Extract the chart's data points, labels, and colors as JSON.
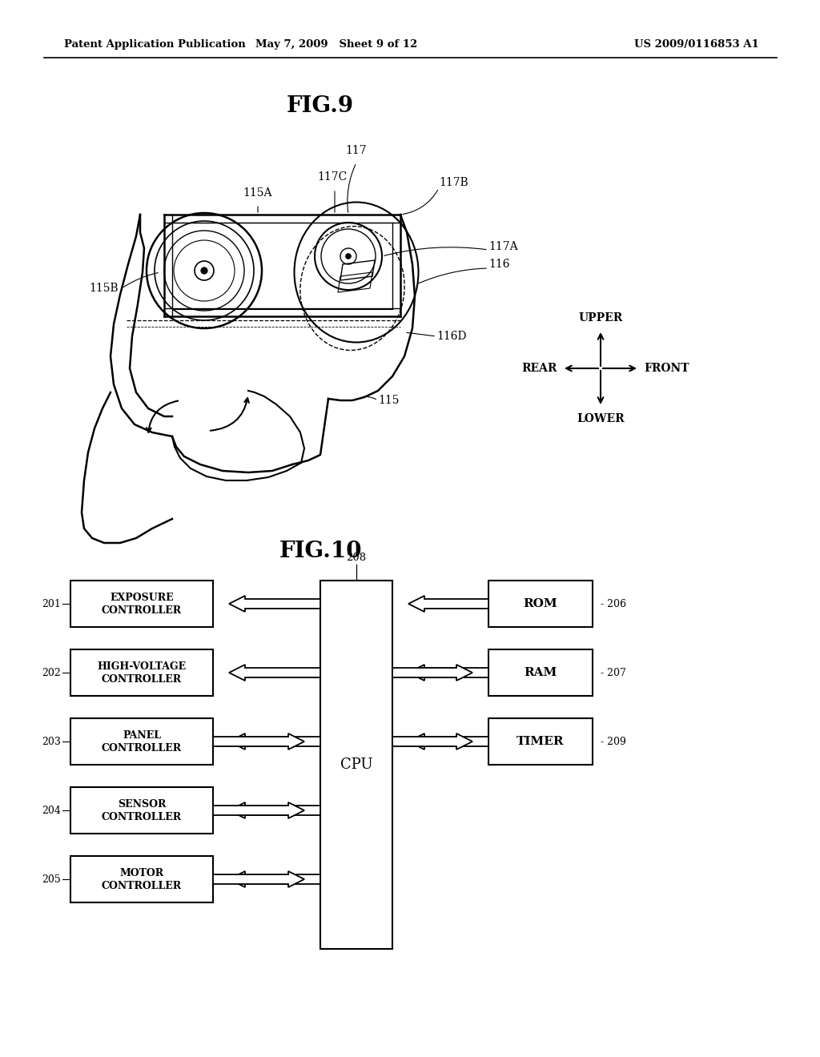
{
  "background_color": "#ffffff",
  "header_left": "Patent Application Publication",
  "header_center": "May 7, 2009   Sheet 9 of 12",
  "header_right": "US 2009/0116853 A1",
  "fig9_title": "FIG.9",
  "fig10_title": "FIG.10",
  "fig10_cpu_label": "CPU",
  "fig10_cpu_number": "208",
  "left_blocks": [
    {
      "label": "EXPOSURE\nCONTROLLER",
      "number": "201",
      "arrow": "left_only"
    },
    {
      "label": "HIGH-VOLTAGE\nCONTROLLER",
      "number": "202",
      "arrow": "left_only"
    },
    {
      "label": "PANEL\nCONTROLLER",
      "number": "203",
      "arrow": "both"
    },
    {
      "label": "SENSOR\nCONTROLLER",
      "number": "204",
      "arrow": "both"
    },
    {
      "label": "MOTOR\nCONTROLLER",
      "number": "205",
      "arrow": "both"
    }
  ],
  "right_blocks": [
    {
      "label": "ROM",
      "number": "206",
      "arrow": "left_only"
    },
    {
      "label": "RAM",
      "number": "207",
      "arrow": "both"
    },
    {
      "label": "TIMER",
      "number": "209",
      "arrow": "both"
    }
  ]
}
